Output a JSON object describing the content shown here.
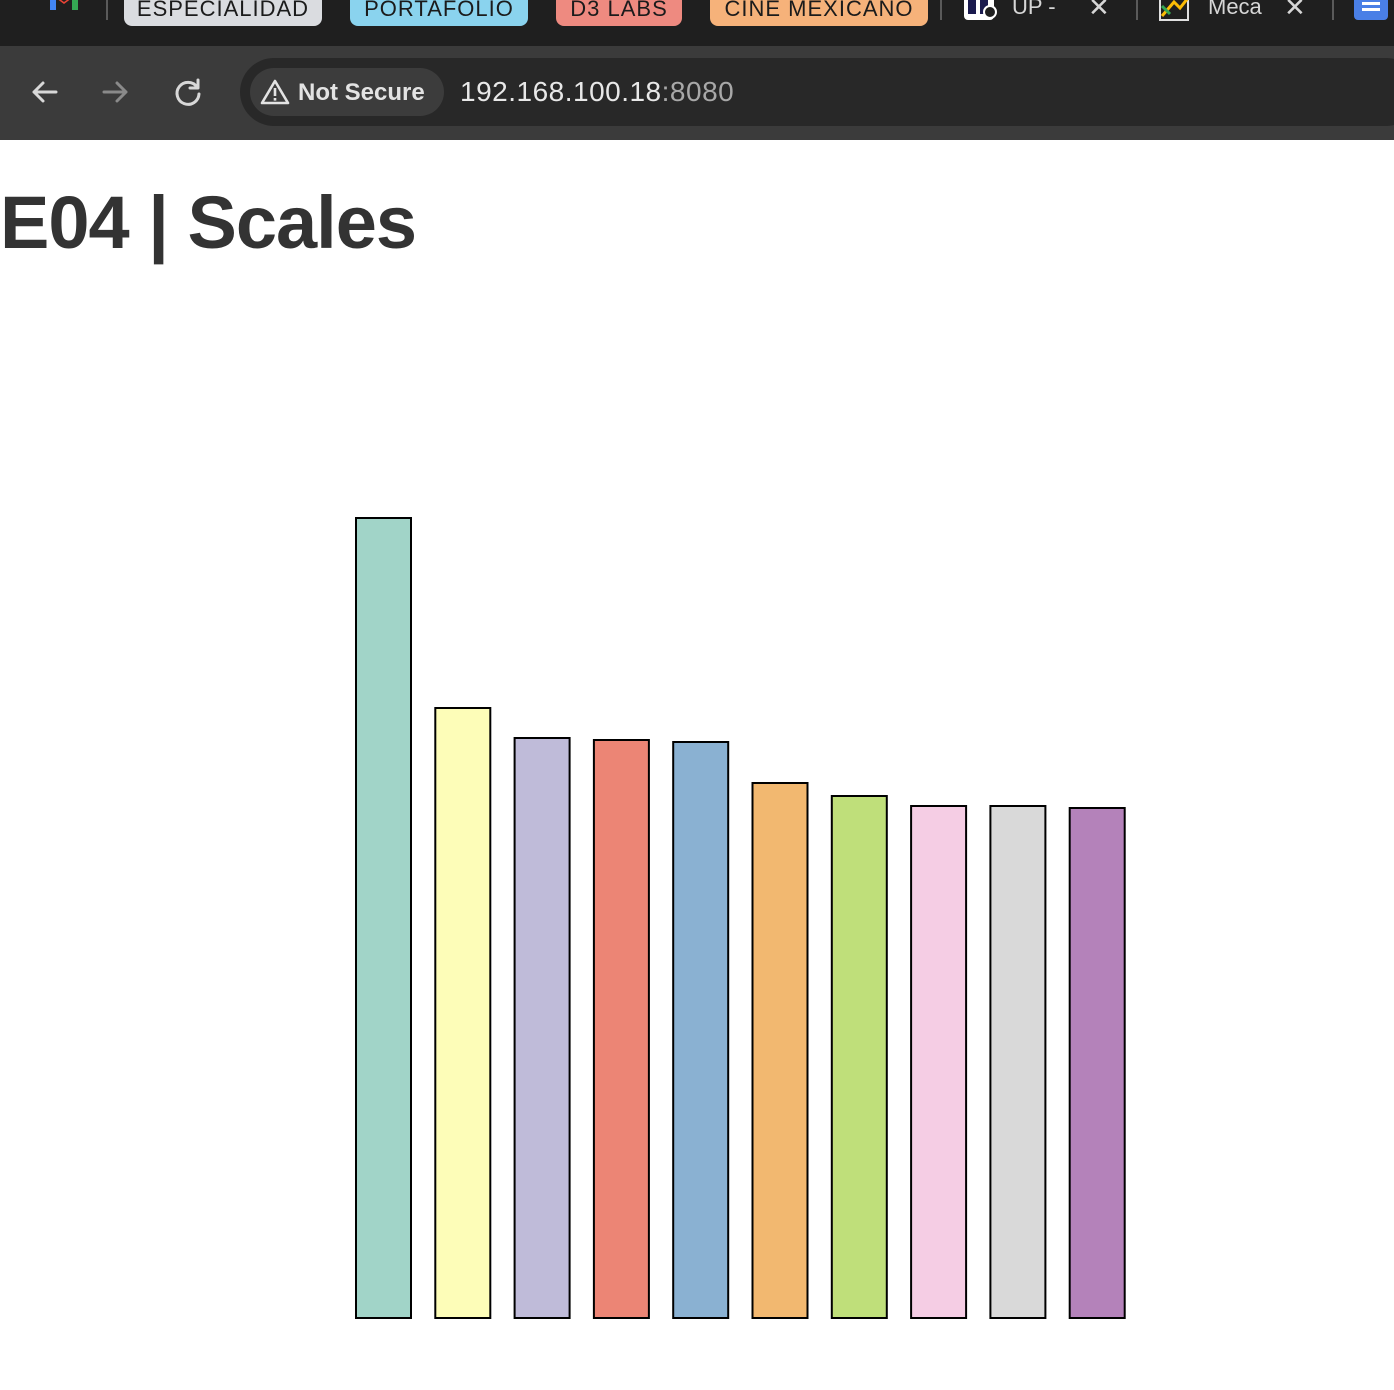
{
  "browser": {
    "tab_groups": [
      {
        "label": "ESPECIALIDAD",
        "color": "#dadce0"
      },
      {
        "label": "PORTAFOLIO",
        "color": "#8ad3ee"
      },
      {
        "label": "D3 LABS",
        "color": "#ee8a80"
      },
      {
        "label": "CINE MEXICANO",
        "color": "#f6b27a"
      }
    ],
    "tabs": [
      {
        "title": "UP -",
        "close": "✕",
        "icon": "up-favicon"
      },
      {
        "title": "Meca",
        "close": "✕",
        "icon": "meca-favicon"
      }
    ],
    "security_label": "Not Secure",
    "url_host": "192.168.100.18",
    "url_port": ":8080"
  },
  "page": {
    "heading": "E04 | Scales"
  },
  "chart_data": {
    "type": "bar",
    "values": [
      800,
      610,
      580,
      578,
      576,
      535,
      522,
      512,
      512,
      510
    ],
    "colors": [
      "#a1d4c8",
      "#fdfdb8",
      "#bfbbd9",
      "#ec8575",
      "#8ab1d2",
      "#f2b870",
      "#bfdf7a",
      "#f5cde4",
      "#d9d9d9",
      "#b482ba"
    ],
    "stroke": "#000000",
    "ylim": [
      0,
      800
    ],
    "title": "",
    "xlabel": "",
    "ylabel": ""
  }
}
